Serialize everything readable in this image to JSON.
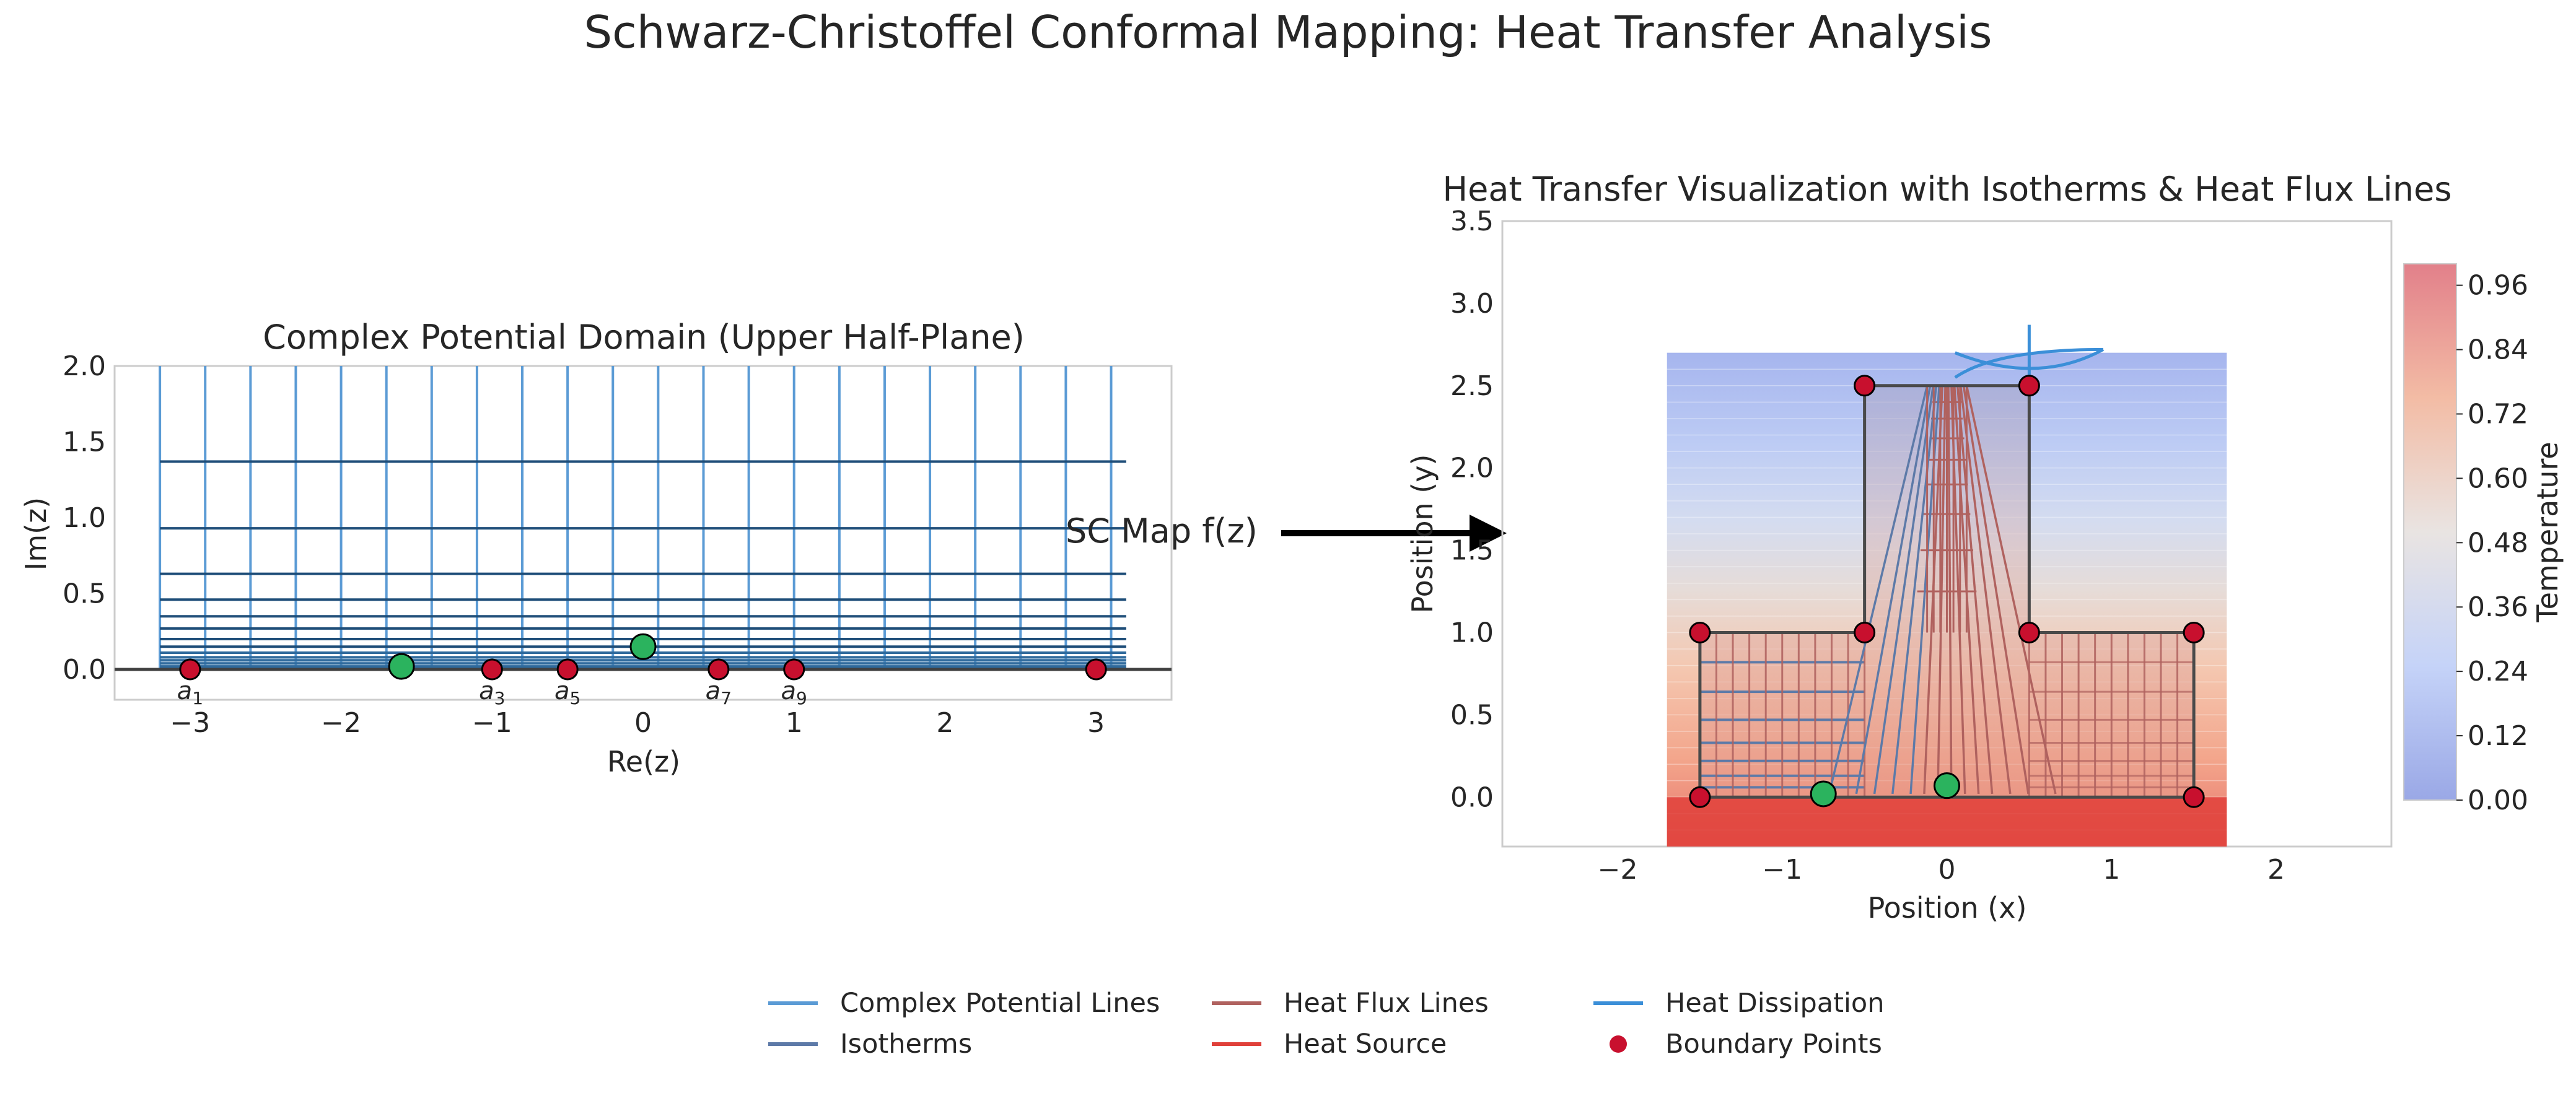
{
  "figure": {
    "title": "Schwarz-Christoffel Conformal Mapping: Heat Transfer Analysis",
    "arrow_label": "SC Map f(z)"
  },
  "colors": {
    "potential_lines": "#5b9bd5",
    "isotherms": "#5d7aa8",
    "flux_lines": "#b0625f",
    "heat_source": "#e0403a",
    "heat_dissipation": "#3b8fd8",
    "boundary_points": "#c8102e",
    "critical_points": "#2bb35e",
    "grid_dark": "#1f4e79"
  },
  "chart_data": [
    {
      "type": "line",
      "title": "Complex Potential Domain (Upper Half-Plane)",
      "xlabel": "Re(z)",
      "ylabel": "Im(z)",
      "xlim": [
        -3.5,
        3.5
      ],
      "ylim": [
        -0.2,
        2.0
      ],
      "xticks": [
        -3,
        -2,
        -1,
        0,
        1,
        2,
        3
      ],
      "xtick_labels": [
        "−3",
        "−2",
        "−1",
        "0",
        "1",
        "2",
        "3"
      ],
      "yticks": [
        0.0,
        0.5,
        1.0,
        1.5,
        2.0
      ],
      "ytick_labels": [
        "0.0",
        "0.5",
        "1.0",
        "1.5",
        "2.0"
      ],
      "grid": false,
      "vertical_lines_x": [
        -3.2,
        -2.9,
        -2.6,
        -2.3,
        -2.0,
        -1.7,
        -1.4,
        -1.1,
        -0.8,
        -0.5,
        -0.2,
        0.1,
        0.4,
        0.7,
        1.0,
        1.3,
        1.6,
        1.9,
        2.2,
        2.5,
        2.8,
        3.1
      ],
      "vertical_lines_range": [
        0.0,
        2.0
      ],
      "horizontal_lines_y": [
        0.01,
        0.02,
        0.04,
        0.06,
        0.08,
        0.11,
        0.15,
        0.2,
        0.27,
        0.35,
        0.46,
        0.63,
        0.93,
        1.37
      ],
      "horizontal_lines_range": [
        -3.2,
        3.2
      ],
      "boundary_points": {
        "x": [
          -3,
          -1,
          -0.5,
          0.5,
          1,
          3
        ],
        "y": [
          0,
          0,
          0,
          0,
          0,
          0
        ],
        "labels": [
          "a1",
          "a3",
          "a5",
          "a7",
          "a9",
          ""
        ]
      },
      "critical_points": {
        "x": [
          -1.6,
          0.0
        ],
        "y": [
          0.02,
          0.15
        ]
      }
    },
    {
      "type": "heatmap",
      "title": "Heat Transfer Visualization with Isotherms & Heat Flux Lines",
      "xlabel": "Position (x)",
      "ylabel": "Position (y)",
      "xlim": [
        -2.7,
        2.7
      ],
      "ylim": [
        -0.3,
        3.5
      ],
      "xticks": [
        -2,
        -1,
        0,
        1,
        2
      ],
      "xtick_labels": [
        "−2",
        "−1",
        "0",
        "1",
        "2"
      ],
      "yticks": [
        0.0,
        0.5,
        1.0,
        1.5,
        2.0,
        2.5,
        3.0,
        3.5
      ],
      "ytick_labels": [
        "0.0",
        "0.5",
        "1.0",
        "1.5",
        "2.0",
        "2.5",
        "3.0",
        "3.5"
      ],
      "field_extent": {
        "x": [
          -1.7,
          1.7
        ],
        "y": [
          -0.3,
          2.7
        ]
      },
      "domain_polygon": {
        "x": [
          -1.5,
          1.5,
          1.5,
          0.5,
          0.5,
          -0.5,
          -0.5,
          -1.5,
          -1.5
        ],
        "y": [
          0,
          0,
          1,
          1,
          2.5,
          2.5,
          1,
          1,
          0
        ]
      },
      "boundary_points": {
        "x": [
          -1.5,
          1.5,
          -1.5,
          -0.5,
          0.5,
          1.5,
          -0.5,
          0.5
        ],
        "y": [
          0,
          0,
          1,
          1,
          1,
          1,
          2.5,
          2.5
        ]
      },
      "critical_points": {
        "x": [
          -0.75,
          0.0
        ],
        "y": [
          0.02,
          0.07
        ]
      },
      "heat_source": {
        "x": [
          -1.7,
          1.7
        ],
        "y": [
          -0.3,
          0.0
        ]
      },
      "colorbar": {
        "label": "Temperature",
        "min": 0.0,
        "max": 1.0,
        "ticks": [
          0.0,
          0.12,
          0.24,
          0.36,
          0.48,
          0.6,
          0.72,
          0.84,
          0.96
        ],
        "tick_labels": [
          "0.00",
          "0.12",
          "0.24",
          "0.36",
          "0.48",
          "0.60",
          "0.72",
          "0.84",
          "0.96"
        ],
        "colormap": "coolwarm"
      }
    }
  ],
  "legend": {
    "items": [
      {
        "label": "Complex Potential Lines",
        "color": "#5b9bd5",
        "kind": "line"
      },
      {
        "label": "Isotherms",
        "color": "#5d7aa8",
        "kind": "line"
      },
      {
        "label": "Heat Flux Lines",
        "color": "#b0625f",
        "kind": "line"
      },
      {
        "label": "Heat Source",
        "color": "#e0403a",
        "kind": "line"
      },
      {
        "label": "Heat Dissipation",
        "color": "#3b8fd8",
        "kind": "line"
      },
      {
        "label": "Boundary Points",
        "color": "#c8102e",
        "kind": "dot"
      }
    ]
  }
}
